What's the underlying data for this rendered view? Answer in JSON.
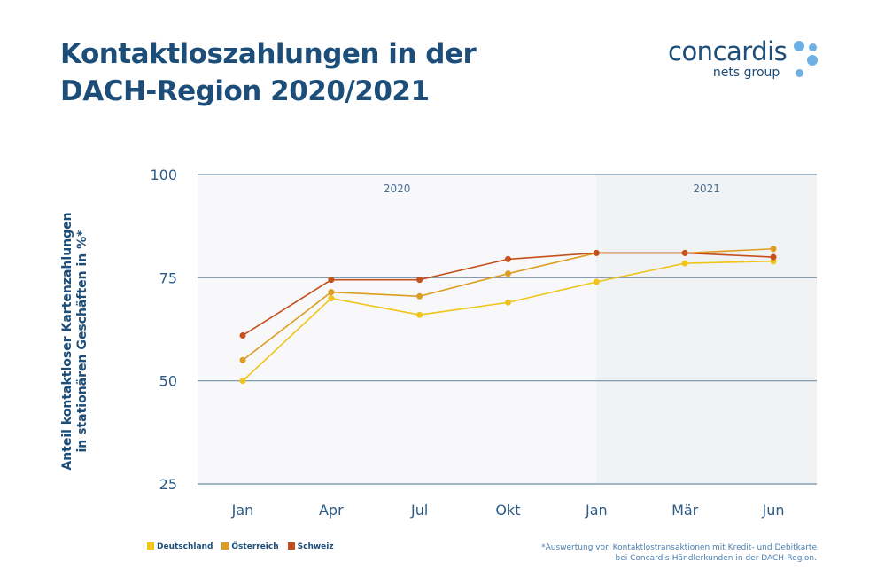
{
  "title_line1": "Kontaktloszahlungen in der",
  "title_line2": "DACH-Region 2020/2021",
  "logo": {
    "main": "concardis",
    "sub": "nets group"
  },
  "footnote_line1": "*Auswertung von Kontaktlostransaktionen mit Kredit- und Debitkarte",
  "footnote_line2": "bei Concardis-Händlerkunden in der DACH-Region.",
  "chart_data": {
    "type": "line",
    "title": "Kontaktloszahlungen in der DACH-Region 2020/2021",
    "ylabel_line1": "Anteil kontaktloser Kartenzahlungen",
    "ylabel_line2": "in stationären Geschäften in %*",
    "categories": [
      "Jan",
      "Apr",
      "Jul",
      "Okt",
      "Jan",
      "Mär",
      "Jun"
    ],
    "period_labels": [
      "2020",
      "2021"
    ],
    "ylim": [
      25,
      100
    ],
    "yticks": [
      25,
      50,
      75,
      100
    ],
    "grid": true,
    "legend_position": "bottom-left",
    "series": [
      {
        "name": "Deutschland",
        "color": "#f0c419",
        "values": [
          50,
          70,
          66,
          69,
          74,
          78.5,
          79
        ]
      },
      {
        "name": "Österreich",
        "color": "#dd9d22",
        "values": [
          55,
          71.5,
          70.5,
          76,
          81,
          81,
          82
        ]
      },
      {
        "name": "Schweiz",
        "color": "#c4501e",
        "values": [
          61,
          74.5,
          74.5,
          79.5,
          81,
          81,
          80
        ]
      }
    ]
  }
}
